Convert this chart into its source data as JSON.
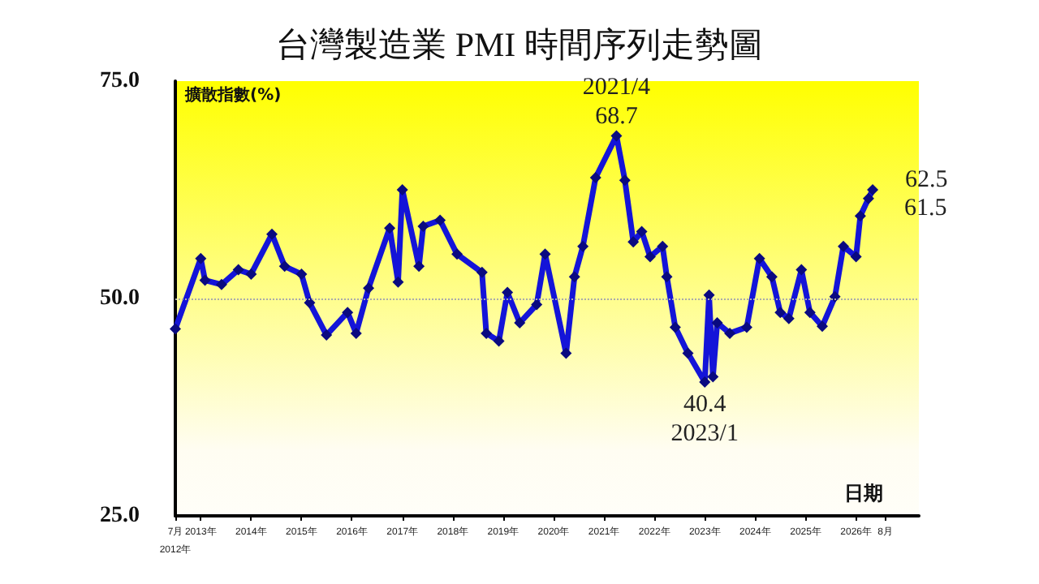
{
  "chart_data": {
    "type": "line",
    "title": "台灣製造業 PMI 時間序列走勢圖",
    "xlabel": "日期",
    "ylabel": "擴散指數(%)",
    "x": [
      "2012-07",
      "2013-01",
      "2013-02",
      "2013-06",
      "2013-10",
      "2014-01",
      "2014-06",
      "2014-09",
      "2015-01",
      "2015-03",
      "2015-07",
      "2015-12",
      "2016-02",
      "2016-05",
      "2016-10",
      "2016-12",
      "2017-01",
      "2017-05",
      "2017-06",
      "2017-10",
      "2018-02",
      "2018-08",
      "2018-09",
      "2018-12",
      "2019-02",
      "2019-05",
      "2019-09",
      "2019-11",
      "2020-04",
      "2020-06",
      "2020-08",
      "2020-11",
      "2021-04",
      "2021-06",
      "2021-08",
      "2021-10",
      "2021-12",
      "2022-03",
      "2022-04",
      "2022-06",
      "2022-09",
      "2023-01",
      "2023-02",
      "2023-03",
      "2023-04",
      "2023-07",
      "2023-11",
      "2024-02",
      "2024-05",
      "2024-07",
      "2024-09",
      "2024-12",
      "2025-02",
      "2025-05",
      "2025-08",
      "2025-10",
      "2026-01",
      "2026-02",
      "2026-04",
      "2026-05"
    ],
    "series": [
      {
        "color": "#1414d8",
        "values": [
          46.5,
          54.6,
          52.1,
          51.6,
          53.3,
          52.8,
          57.4,
          53.7,
          52.8,
          49.5,
          45.8,
          48.4,
          46.0,
          51.2,
          58.1,
          51.9,
          62.5,
          53.7,
          58.3,
          59.0,
          55.1,
          53.0,
          46.0,
          45.1,
          50.7,
          47.2,
          49.3,
          55.1,
          43.7,
          52.5,
          56.0,
          63.9,
          68.7,
          63.6,
          56.5,
          57.7,
          54.8,
          56.0,
          52.5,
          46.7,
          43.7,
          40.4,
          50.4,
          41.0,
          47.2,
          46.0,
          46.7,
          54.6,
          52.5,
          48.4,
          47.7,
          53.3,
          48.4,
          46.8,
          50.2,
          56.0,
          54.8,
          59.5,
          61.5,
          62.5
        ]
      }
    ],
    "xlim": [
      "2012-07",
      "2027-04"
    ],
    "xticks": [
      {
        "value": "2012-07",
        "label": "7月\n2012年"
      },
      {
        "value": "2013-01",
        "label": "2013年"
      },
      {
        "value": "2014-01",
        "label": "2014年"
      },
      {
        "value": "2015-01",
        "label": "2015年"
      },
      {
        "value": "2016-01",
        "label": "2016年"
      },
      {
        "value": "2017-01",
        "label": "2017年"
      },
      {
        "value": "2018-01",
        "label": "2018年"
      },
      {
        "value": "2019-01",
        "label": "2019年"
      },
      {
        "value": "2020-01",
        "label": "2020年"
      },
      {
        "value": "2021-01",
        "label": "2021年"
      },
      {
        "value": "2022-01",
        "label": "2022年"
      },
      {
        "value": "2023-01",
        "label": "2023年"
      },
      {
        "value": "2024-01",
        "label": "2024年"
      },
      {
        "value": "2025-01",
        "label": "2025年"
      },
      {
        "value": "2026-01",
        "label": "2026年"
      },
      {
        "value": "2026-08",
        "label": "8月"
      }
    ],
    "ylim": [
      25,
      75
    ],
    "yticks": [
      {
        "value": 25,
        "label": "25.0"
      },
      {
        "value": 50,
        "label": "50.0"
      },
      {
        "value": 75,
        "label": "75.0"
      }
    ],
    "ref_lines": [
      {
        "axis": "y",
        "value": 50,
        "color": "#aaaaaa",
        "line_style": "dotted"
      }
    ],
    "annotations": [
      {
        "text": "2021/4",
        "x": "2021-04",
        "y": 68.7
      },
      {
        "text": "68.7",
        "x": "2021-04",
        "y": 68.7
      },
      {
        "text": "40.4",
        "x": "2023-01",
        "y": 40.4
      },
      {
        "text": "2023/1",
        "x": "2023-01",
        "y": 40.4
      },
      {
        "text": "62.5",
        "x": "2026-05",
        "y": 62.5
      },
      {
        "text": "61.5",
        "x": "2026-04",
        "y": 61.5
      }
    ],
    "grid": false,
    "marker": "diamond",
    "line_style": "solid"
  }
}
